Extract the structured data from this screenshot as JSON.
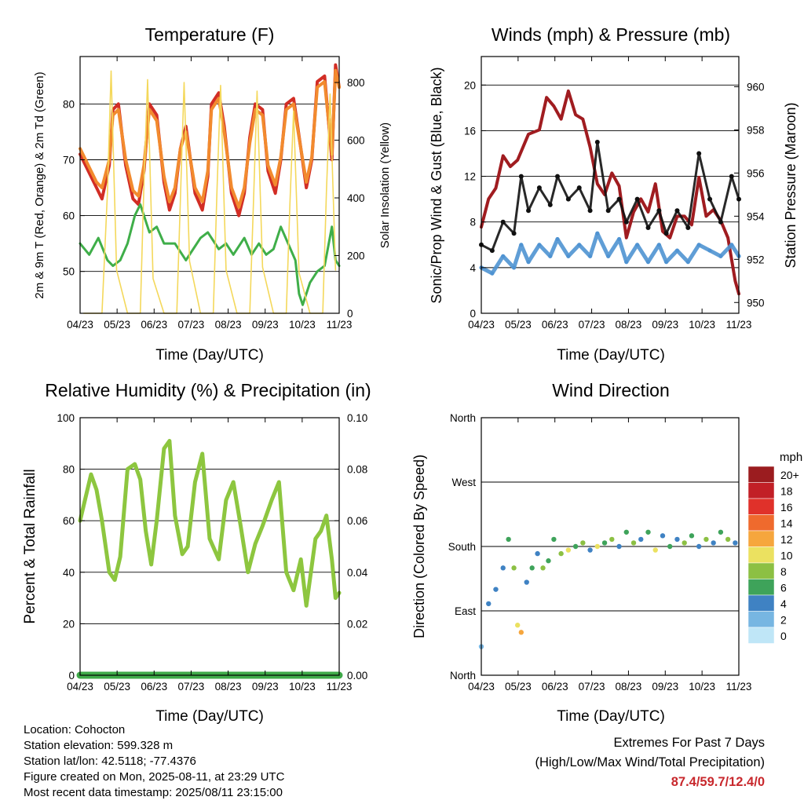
{
  "panels": [
    {
      "id": "temperature",
      "title": "Temperature (F)",
      "xlabel": "Time (Day/UTC)",
      "ylabel_left": "2m & 9m T (Red, Orange) & 2m Td (Green)",
      "ylabel_right": "Solar Insolation (Yellow)"
    },
    {
      "id": "winds",
      "title": "Winds (mph) & Pressure (mb)",
      "xlabel": "Time (Day/UTC)",
      "ylabel_left": "Sonic/Prop Wind & Gust (Blue, Black)",
      "ylabel_right": "Station Pressure (Maroon)"
    },
    {
      "id": "humidity",
      "title": "Relative Humidity (%) & Precipitation (in)",
      "xlabel": "Time (Day/UTC)",
      "ylabel_left": "Percent & Total Rainfall",
      "ylabel_right": ""
    },
    {
      "id": "direction",
      "title": "Wind Direction",
      "xlabel": "Time (Day/UTC)",
      "ylabel_left": "Direction (Colored By Speed)",
      "ylabel_right": ""
    }
  ],
  "colorbar": {
    "title": "mph",
    "labels": [
      "20+",
      "18",
      "16",
      "14",
      "12",
      "10",
      "8",
      "6",
      "4",
      "2",
      "0"
    ],
    "colors": [
      "#9b1c1f",
      "#c21f26",
      "#e0312a",
      "#ef6a2d",
      "#f6a63d",
      "#ebe160",
      "#8cc043",
      "#3ea35a",
      "#3f82c3",
      "#77b6e2",
      "#bfe6f7"
    ]
  },
  "info": {
    "location": "Location: Cohocton",
    "elevation": "Station elevation: 599.328 m",
    "latlon": "Station lat/lon: 42.5118; -77.4376",
    "created": "Figure created on Mon, 2025-08-11, at 23:29 UTC",
    "recent": "Most recent data timestamp: 2025/08/11 23:15:00"
  },
  "extremes": {
    "title": "Extremes For Past 7 Days",
    "subtitle": "(High/Low/Max Wind/Total Precipitation)",
    "values": "87.4/59.7/12.4/0"
  },
  "chart_data": [
    {
      "type": "line",
      "title": "Temperature (F)",
      "xlabel": "Time (Day/UTC)",
      "ylabel": "2m & 9m T (Red, Orange) & 2m Td (Green)",
      "y2label": "Solar Insolation (Yellow)",
      "xticks": [
        "04/23",
        "05/23",
        "06/23",
        "07/23",
        "08/23",
        "09/23",
        "10/23",
        "11/23"
      ],
      "xlim": [
        0,
        7.1
      ],
      "ylim": [
        42.5,
        88.5
      ],
      "yticks": [
        50,
        60,
        70,
        80
      ],
      "y2lim": [
        0,
        890
      ],
      "y2ticks": [
        0,
        200,
        400,
        600,
        800
      ],
      "series": [
        {
          "name": "2m T (Red)",
          "color": "#d22d25",
          "axis": "left",
          "x": [
            0,
            0.15,
            0.3,
            0.45,
            0.6,
            0.8,
            0.9,
            1.05,
            1.25,
            1.45,
            1.6,
            1.75,
            1.9,
            2.1,
            2.3,
            2.45,
            2.6,
            2.75,
            2.9,
            3.15,
            3.35,
            3.5,
            3.6,
            3.8,
            3.95,
            4.15,
            4.35,
            4.5,
            4.65,
            4.8,
            5.0,
            5.15,
            5.35,
            5.5,
            5.65,
            5.85,
            6.05,
            6.2,
            6.35,
            6.5,
            6.7,
            6.9,
            7.0,
            7.1
          ],
          "y": [
            71,
            69,
            67,
            65,
            63,
            69,
            79,
            80,
            69,
            63,
            62,
            68,
            80,
            78,
            66,
            61,
            64,
            72,
            76,
            64,
            61,
            67,
            80,
            82,
            76,
            64,
            60,
            64,
            74,
            80,
            79,
            68,
            64,
            70,
            80,
            81,
            72,
            65,
            70,
            84,
            85,
            70,
            87,
            83
          ]
        },
        {
          "name": "9m T (Orange)",
          "color": "#f28a2e",
          "axis": "left",
          "x": [
            0,
            0.15,
            0.3,
            0.45,
            0.6,
            0.8,
            0.9,
            1.05,
            1.25,
            1.45,
            1.6,
            1.75,
            1.9,
            2.1,
            2.3,
            2.45,
            2.6,
            2.75,
            2.9,
            3.15,
            3.35,
            3.5,
            3.6,
            3.8,
            3.95,
            4.15,
            4.35,
            4.5,
            4.65,
            4.8,
            5.0,
            5.15,
            5.35,
            5.5,
            5.65,
            5.85,
            6.05,
            6.2,
            6.35,
            6.5,
            6.7,
            6.9,
            7.0,
            7.1
          ],
          "y": [
            72,
            70,
            68,
            66,
            65,
            70,
            78,
            79,
            70,
            64.5,
            63.5,
            69,
            79,
            77,
            67,
            62.5,
            65,
            72,
            75,
            65,
            62.5,
            68,
            79,
            81,
            75,
            65,
            61.5,
            65,
            73,
            79,
            78,
            69,
            65.5,
            70.5,
            79,
            80,
            72,
            66,
            70.5,
            83,
            84,
            71,
            86,
            83
          ]
        },
        {
          "name": "2m Td (Green)",
          "color": "#3fae49",
          "axis": "left",
          "x": [
            0,
            0.25,
            0.5,
            0.75,
            0.9,
            1.1,
            1.3,
            1.5,
            1.65,
            1.9,
            2.1,
            2.3,
            2.6,
            2.9,
            3.1,
            3.3,
            3.5,
            3.8,
            4.0,
            4.2,
            4.5,
            4.7,
            4.9,
            5.1,
            5.3,
            5.5,
            5.7,
            5.9,
            6.0,
            6.1,
            6.3,
            6.5,
            6.7,
            6.9,
            7.0,
            7.1
          ],
          "y": [
            55,
            53,
            56,
            52,
            51,
            52,
            55,
            60,
            62,
            57,
            58,
            55,
            55,
            52,
            54,
            56,
            57,
            54,
            55,
            53,
            56,
            53,
            55,
            53,
            54,
            58,
            55,
            52,
            46,
            44,
            48,
            50,
            51,
            58,
            52,
            51
          ]
        },
        {
          "name": "Solar Insolation (Yellow)",
          "color": "#f4d85b",
          "axis": "right",
          "x": [
            0.1,
            0.6,
            0.75,
            0.85,
            1.0,
            1.3,
            1.65,
            1.75,
            1.85,
            2.0,
            2.3,
            2.65,
            2.75,
            2.85,
            3.0,
            3.3,
            3.65,
            3.75,
            3.85,
            4.0,
            4.3,
            4.65,
            4.75,
            4.85,
            5.0,
            5.3,
            5.65,
            5.75,
            5.85,
            6.0,
            6.3,
            6.65,
            6.75,
            6.85,
            7.0
          ],
          "y": [
            0,
            0,
            420,
            840,
            150,
            0,
            0,
            450,
            810,
            120,
            0,
            0,
            400,
            800,
            180,
            0,
            0,
            420,
            790,
            150,
            0,
            0,
            380,
            770,
            160,
            0,
            0,
            380,
            700,
            140,
            0,
            0,
            420,
            760,
            150
          ]
        }
      ]
    },
    {
      "type": "scatter",
      "title": "Winds (mph) & Pressure (mb)",
      "xlabel": "Time (Day/UTC)",
      "ylabel": "Sonic/Prop Wind & Gust (Blue, Black)",
      "y2label": "Station Pressure (Maroon)",
      "xticks": [
        "04/23",
        "05/23",
        "06/23",
        "07/23",
        "08/23",
        "09/23",
        "10/23",
        "11/23"
      ],
      "xlim": [
        0,
        7.1
      ],
      "ylim": [
        0,
        22.5
      ],
      "yticks": [
        0,
        4,
        8,
        12,
        16,
        20
      ],
      "y2lim": [
        949.5,
        961.4
      ],
      "y2ticks": [
        950,
        952,
        954,
        956,
        958,
        960
      ],
      "series": [
        {
          "name": "Station Pressure (Maroon)",
          "color": "#a01c20",
          "axis": "right",
          "x": [
            0,
            0.2,
            0.4,
            0.6,
            0.8,
            1.0,
            1.3,
            1.6,
            1.8,
            2.0,
            2.2,
            2.4,
            2.6,
            2.8,
            3.0,
            3.2,
            3.4,
            3.6,
            3.8,
            4.0,
            4.2,
            4.4,
            4.6,
            4.8,
            5.0,
            5.2,
            5.4,
            5.6,
            5.8,
            6.0,
            6.2,
            6.4,
            6.6,
            6.8,
            6.9,
            7.0,
            7.1
          ],
          "y": [
            953.5,
            954.8,
            955.3,
            956.8,
            956.3,
            956.6,
            957.8,
            958.0,
            959.5,
            959.1,
            958.5,
            959.8,
            958.7,
            958.5,
            957.2,
            955.5,
            955.0,
            956.0,
            955.4,
            953.0,
            954.2,
            954.8,
            954.2,
            955.5,
            953.3,
            953.0,
            954.0,
            954.0,
            953.6,
            955.8,
            954.0,
            954.3,
            953.8,
            953.0,
            952.0,
            951.0,
            950.4
          ]
        },
        {
          "name": "Sonic/Prop Wind (Blue)",
          "color": "#4f93d2",
          "axis": "left",
          "x": [
            0,
            0.3,
            0.6,
            0.9,
            1.1,
            1.3,
            1.6,
            1.9,
            2.1,
            2.4,
            2.7,
            3.0,
            3.2,
            3.5,
            3.8,
            4.0,
            4.3,
            4.6,
            4.9,
            5.1,
            5.4,
            5.7,
            6.0,
            6.3,
            6.6,
            6.9,
            7.1
          ],
          "y": [
            4,
            3.5,
            5,
            4,
            6,
            4.5,
            6,
            5,
            6.5,
            5,
            6,
            5,
            7,
            5,
            6.5,
            4.5,
            6,
            4.5,
            6,
            4.5,
            5.5,
            4.5,
            6,
            5.5,
            5,
            6,
            5
          ]
        },
        {
          "name": "Gust (Black)",
          "color": "#111111",
          "axis": "left",
          "x": [
            0,
            0.3,
            0.6,
            0.9,
            1.1,
            1.3,
            1.6,
            1.9,
            2.1,
            2.4,
            2.7,
            3.0,
            3.2,
            3.5,
            3.8,
            4.0,
            4.3,
            4.6,
            4.9,
            5.1,
            5.4,
            5.7,
            6.0,
            6.3,
            6.6,
            6.9,
            7.1
          ],
          "y": [
            6,
            5.5,
            8,
            7,
            12,
            9,
            11,
            9.5,
            12,
            10,
            11,
            9,
            15,
            9,
            10,
            8,
            10,
            7.5,
            9,
            7,
            9,
            7.5,
            14,
            10,
            8,
            12,
            10
          ]
        }
      ]
    },
    {
      "type": "line",
      "title": "Relative Humidity (%) & Precipitation (in)",
      "xlabel": "Time (Day/UTC)",
      "ylabel": "Percent & Total Rainfall",
      "xticks": [
        "04/23",
        "05/23",
        "06/23",
        "07/23",
        "08/23",
        "09/23",
        "10/23",
        "11/23"
      ],
      "xlim": [
        0,
        7.1
      ],
      "ylim": [
        0,
        100
      ],
      "yticks": [
        0,
        20,
        40,
        60,
        80,
        100
      ],
      "y2lim": [
        0,
        0.1
      ],
      "y2ticks": [
        0.0,
        0.02,
        0.04,
        0.06,
        0.08,
        0.1
      ],
      "series": [
        {
          "name": "Relative Humidity",
          "color": "#8dc63f",
          "axis": "left",
          "x": [
            0,
            0.1,
            0.3,
            0.45,
            0.6,
            0.8,
            0.95,
            1.1,
            1.3,
            1.5,
            1.65,
            1.8,
            1.95,
            2.1,
            2.3,
            2.45,
            2.6,
            2.8,
            2.95,
            3.15,
            3.35,
            3.55,
            3.8,
            4.0,
            4.2,
            4.4,
            4.6,
            4.8,
            5.0,
            5.25,
            5.45,
            5.65,
            5.85,
            6.05,
            6.2,
            6.45,
            6.6,
            6.75,
            6.9,
            7.0,
            7.1
          ],
          "y": [
            60,
            66,
            78,
            72,
            60,
            40,
            37,
            46,
            80,
            82,
            76,
            56,
            43,
            60,
            88,
            91,
            62,
            47,
            50,
            75,
            86,
            53,
            45,
            68,
            75,
            58,
            40,
            51,
            58,
            68,
            75,
            40,
            33,
            45,
            27,
            53,
            56,
            62,
            45,
            30,
            32
          ]
        },
        {
          "name": "Total Precipitation",
          "color": "#3faa49",
          "axis": "right",
          "x": [
            0,
            7.1
          ],
          "y": [
            0,
            0
          ]
        }
      ]
    },
    {
      "type": "scatter",
      "title": "Wind Direction",
      "xlabel": "Time (Day/UTC)",
      "ylabel": "Direction (Colored By Speed)",
      "xticks": [
        "04/23",
        "05/23",
        "06/23",
        "07/23",
        "08/23",
        "09/23",
        "10/23",
        "11/23"
      ],
      "xlim": [
        0,
        7.1
      ],
      "ylim": [
        0,
        360
      ],
      "yticks": [
        0,
        90,
        180,
        270,
        360
      ],
      "ytick_labels": [
        "North",
        "East",
        "South",
        "West",
        "North"
      ],
      "legend": "right",
      "series": [
        {
          "name": "Wind Direction",
          "x": [
            0,
            0.2,
            0.4,
            0.6,
            0.75,
            0.9,
            1.0,
            1.1,
            1.25,
            1.4,
            1.55,
            1.7,
            1.85,
            2.0,
            2.2,
            2.4,
            2.6,
            2.8,
            3.0,
            3.2,
            3.4,
            3.6,
            3.8,
            4.0,
            4.2,
            4.4,
            4.6,
            4.8,
            5.0,
            5.2,
            5.4,
            5.6,
            5.8,
            6.0,
            6.2,
            6.4,
            6.6,
            6.8,
            7.0
          ],
          "y": [
            40,
            100,
            120,
            150,
            190,
            150,
            70,
            60,
            130,
            150,
            170,
            150,
            160,
            190,
            170,
            175,
            180,
            185,
            175,
            180,
            185,
            190,
            180,
            200,
            185,
            190,
            200,
            175,
            195,
            180,
            190,
            185,
            195,
            180,
            190,
            185,
            200,
            190,
            185
          ],
          "speed": [
            2,
            3,
            4,
            4,
            6,
            7,
            10,
            12,
            4,
            6,
            4,
            8,
            5,
            6,
            8,
            10,
            6,
            8,
            4,
            10,
            6,
            8,
            4,
            6,
            8,
            4,
            6,
            10,
            4,
            6,
            4,
            8,
            6,
            4,
            8,
            4,
            6,
            8,
            4
          ]
        }
      ]
    }
  ]
}
